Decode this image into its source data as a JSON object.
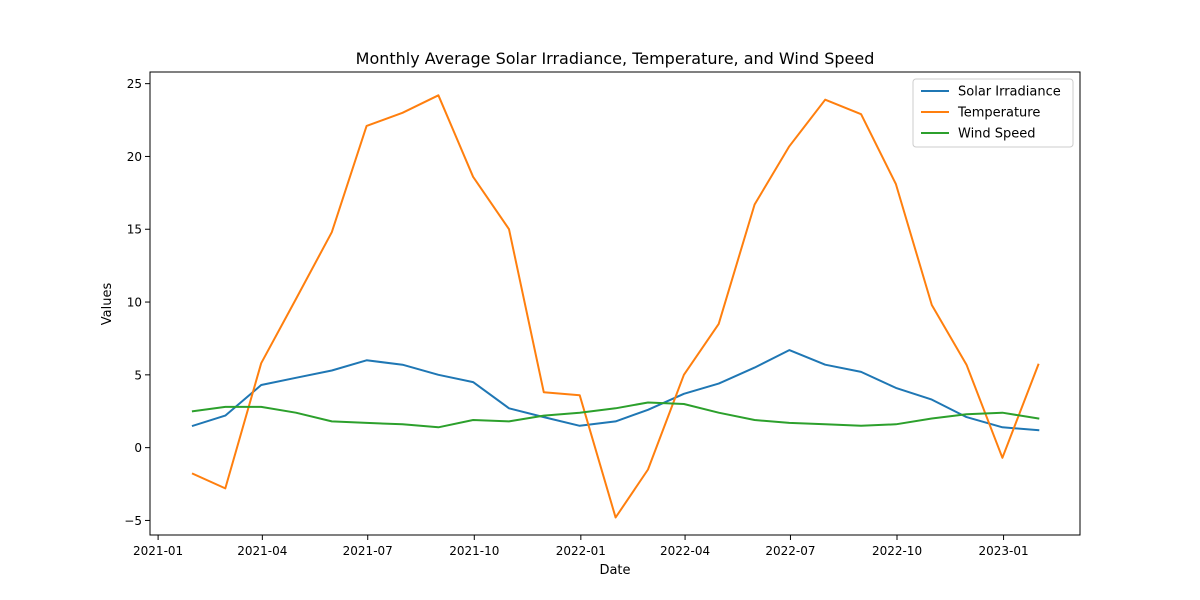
{
  "chart_data": {
    "type": "line",
    "title": "Monthly Average Solar Irradiance, Temperature, and Wind Speed",
    "xlabel": "Date",
    "ylabel": "Values",
    "x": [
      "2021-01-31",
      "2021-02-28",
      "2021-03-31",
      "2021-04-30",
      "2021-05-31",
      "2021-06-30",
      "2021-07-31",
      "2021-08-31",
      "2021-09-30",
      "2021-10-31",
      "2021-11-30",
      "2021-12-31",
      "2022-01-31",
      "2022-02-28",
      "2022-03-31",
      "2022-04-30",
      "2022-05-31",
      "2022-06-30",
      "2022-07-31",
      "2022-08-31",
      "2022-09-30",
      "2022-10-31",
      "2022-11-30",
      "2022-12-31",
      "2023-01-31"
    ],
    "xlim": [
      "2020-12-25",
      "2023-03-08"
    ],
    "ylim": [
      -6.0,
      25.8
    ],
    "xticks": [
      {
        "value": "2021-01-01",
        "label": "2021-01"
      },
      {
        "value": "2021-04-01",
        "label": "2021-04"
      },
      {
        "value": "2021-07-01",
        "label": "2021-07"
      },
      {
        "value": "2021-10-01",
        "label": "2021-10"
      },
      {
        "value": "2022-01-01",
        "label": "2022-01"
      },
      {
        "value": "2022-04-01",
        "label": "2022-04"
      },
      {
        "value": "2022-07-01",
        "label": "2022-07"
      },
      {
        "value": "2022-10-01",
        "label": "2022-10"
      },
      {
        "value": "2023-01-01",
        "label": "2023-01"
      }
    ],
    "yticks": [
      {
        "value": -5,
        "label": "−5"
      },
      {
        "value": 0,
        "label": "0"
      },
      {
        "value": 5,
        "label": "5"
      },
      {
        "value": 10,
        "label": "10"
      },
      {
        "value": 15,
        "label": "15"
      },
      {
        "value": 20,
        "label": "20"
      },
      {
        "value": 25,
        "label": "25"
      }
    ],
    "grid": false,
    "legend_position": "top-right",
    "series": [
      {
        "name": "Solar Irradiance",
        "color": "#1f77b4",
        "values": [
          1.5,
          2.2,
          4.3,
          4.8,
          5.3,
          6.0,
          5.7,
          5.0,
          4.5,
          2.7,
          2.1,
          1.5,
          1.8,
          2.6,
          3.7,
          4.4,
          5.5,
          6.7,
          5.7,
          5.2,
          4.1,
          3.3,
          2.1,
          1.4,
          1.2
        ]
      },
      {
        "name": "Temperature",
        "color": "#ff7f0e",
        "values": [
          -1.8,
          -2.8,
          5.8,
          10.2,
          14.8,
          22.1,
          23.0,
          24.2,
          18.6,
          15.0,
          3.8,
          3.6,
          -4.8,
          -1.5,
          5.0,
          8.5,
          16.7,
          20.7,
          23.9,
          22.9,
          18.1,
          9.8,
          5.7,
          -0.7,
          5.7
        ]
      },
      {
        "name": "Wind Speed",
        "color": "#2ca02c",
        "values": [
          2.5,
          2.8,
          2.8,
          2.4,
          1.8,
          1.7,
          1.6,
          1.4,
          1.9,
          1.8,
          2.2,
          2.4,
          2.7,
          3.1,
          3.0,
          2.4,
          1.9,
          1.7,
          1.6,
          1.5,
          1.6,
          2.0,
          2.3,
          2.4,
          2.0
        ]
      }
    ]
  }
}
